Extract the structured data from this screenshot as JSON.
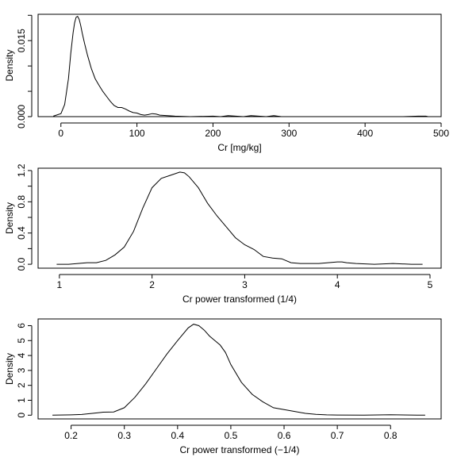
{
  "chart_data": [
    {
      "type": "line",
      "xlabel": "Cr [mg/kg]",
      "ylabel": "Density",
      "xlim": [
        -30,
        500
      ],
      "ylim": [
        0,
        0.0202
      ],
      "xticks": [
        0,
        100,
        200,
        300,
        400,
        500
      ],
      "xtick_labels": [
        "0",
        "100",
        "200",
        "300",
        "400",
        "500"
      ],
      "yticks": [
        0,
        0.005,
        0.01,
        0.015,
        0.02
      ],
      "ytick_labels": [
        "0.000",
        "",
        "",
        "0.015",
        ""
      ],
      "x_axis_span": [
        0,
        500
      ],
      "y_axis_span": [
        0,
        0.02
      ],
      "series": [
        {
          "x": [
            -10,
            0,
            5,
            10,
            13,
            16,
            18,
            20,
            22,
            24,
            26,
            28,
            31,
            35,
            40,
            45,
            50,
            55,
            60,
            65,
            70,
            75,
            80,
            85,
            90,
            95,
            100,
            105,
            110,
            115,
            120,
            125,
            130,
            140,
            150,
            170,
            200,
            210,
            220,
            230,
            240,
            250,
            260,
            270,
            280,
            290,
            300,
            350,
            400,
            450,
            470,
            480,
            483
          ],
          "y": [
            0.0001,
            0.0006,
            0.0024,
            0.0075,
            0.0125,
            0.0165,
            0.0185,
            0.0196,
            0.0198,
            0.0192,
            0.018,
            0.0165,
            0.0145,
            0.0121,
            0.0095,
            0.0075,
            0.0062,
            0.005,
            0.004,
            0.003,
            0.0022,
            0.0018,
            0.0018,
            0.0015,
            0.0011,
            0.0008,
            0.0007,
            0.0004,
            0.0003,
            0.0004,
            0.0006,
            0.0005,
            0.0003,
            0.0002,
            0.0001,
            0.0,
            0.0001,
            0.0,
            0.0002,
            0.0001,
            0.0,
            0.0002,
            0.0001,
            0.0,
            0.0002,
            0.0,
            0.0,
            0.0,
            0.0,
            0.0,
            0.0001,
            0.0001,
            0.0
          ]
        }
      ]
    },
    {
      "type": "line",
      "xlabel": "Cr power transformed (1/4)",
      "ylabel": "Density",
      "xlim": [
        0.77,
        5.12
      ],
      "ylim": [
        -0.05,
        1.23
      ],
      "xticks": [
        1,
        2,
        3,
        4,
        5
      ],
      "xtick_labels": [
        "1",
        "2",
        "3",
        "4",
        "5"
      ],
      "yticks": [
        0,
        0.2,
        0.4,
        0.6,
        0.8,
        1.0,
        1.2
      ],
      "ytick_labels": [
        "0.0",
        "",
        "0.4",
        "",
        "0.8",
        "",
        "1.2"
      ],
      "x_axis_span": [
        1,
        5
      ],
      "y_axis_span": [
        0,
        1.2
      ],
      "series": [
        {
          "x": [
            0.97,
            1.1,
            1.2,
            1.3,
            1.4,
            1.5,
            1.6,
            1.7,
            1.8,
            1.9,
            2.0,
            2.1,
            2.2,
            2.3,
            2.35,
            2.4,
            2.5,
            2.6,
            2.7,
            2.8,
            2.9,
            3.0,
            3.1,
            3.2,
            3.3,
            3.4,
            3.5,
            3.6,
            3.8,
            4.0,
            4.05,
            4.1,
            4.2,
            4.4,
            4.6,
            4.8,
            4.92
          ],
          "y": [
            0.0,
            0.0,
            0.01,
            0.02,
            0.02,
            0.05,
            0.12,
            0.22,
            0.42,
            0.72,
            0.98,
            1.1,
            1.14,
            1.18,
            1.17,
            1.12,
            0.98,
            0.78,
            0.62,
            0.48,
            0.34,
            0.25,
            0.19,
            0.1,
            0.08,
            0.07,
            0.02,
            0.01,
            0.01,
            0.03,
            0.03,
            0.02,
            0.01,
            0.0,
            0.01,
            0.0,
            0.0
          ]
        }
      ]
    },
    {
      "type": "line",
      "xlabel": "Cr power transformed (−1/4)",
      "ylabel": "Density",
      "xlim": [
        0.138,
        0.895
      ],
      "ylim": [
        -0.25,
        6.45
      ],
      "xticks": [
        0.2,
        0.3,
        0.4,
        0.5,
        0.6,
        0.7,
        0.8
      ],
      "xtick_labels": [
        "0.2",
        "0.3",
        "0.4",
        "0.5",
        "0.6",
        "0.7",
        "0.8"
      ],
      "yticks": [
        0,
        1,
        2,
        3,
        4,
        5,
        6
      ],
      "ytick_labels": [
        "0",
        "1",
        "2",
        "3",
        "4",
        "5",
        "6"
      ],
      "x_axis_span": [
        0.2,
        0.8
      ],
      "y_axis_span": [
        0,
        6
      ],
      "series": [
        {
          "x": [
            0.165,
            0.2,
            0.22,
            0.24,
            0.26,
            0.28,
            0.3,
            0.32,
            0.34,
            0.36,
            0.38,
            0.4,
            0.42,
            0.43,
            0.44,
            0.45,
            0.46,
            0.47,
            0.48,
            0.49,
            0.5,
            0.52,
            0.54,
            0.56,
            0.58,
            0.6,
            0.62,
            0.64,
            0.66,
            0.68,
            0.7,
            0.75,
            0.8,
            0.85,
            0.865
          ],
          "y": [
            0.0,
            0.02,
            0.05,
            0.12,
            0.2,
            0.22,
            0.5,
            1.2,
            2.1,
            3.1,
            4.1,
            5.0,
            5.85,
            6.1,
            6.0,
            5.7,
            5.3,
            5.0,
            4.7,
            4.2,
            3.4,
            2.2,
            1.4,
            0.9,
            0.5,
            0.38,
            0.25,
            0.12,
            0.06,
            0.02,
            0.01,
            0.0,
            0.03,
            0.0,
            0.0
          ]
        }
      ]
    }
  ]
}
